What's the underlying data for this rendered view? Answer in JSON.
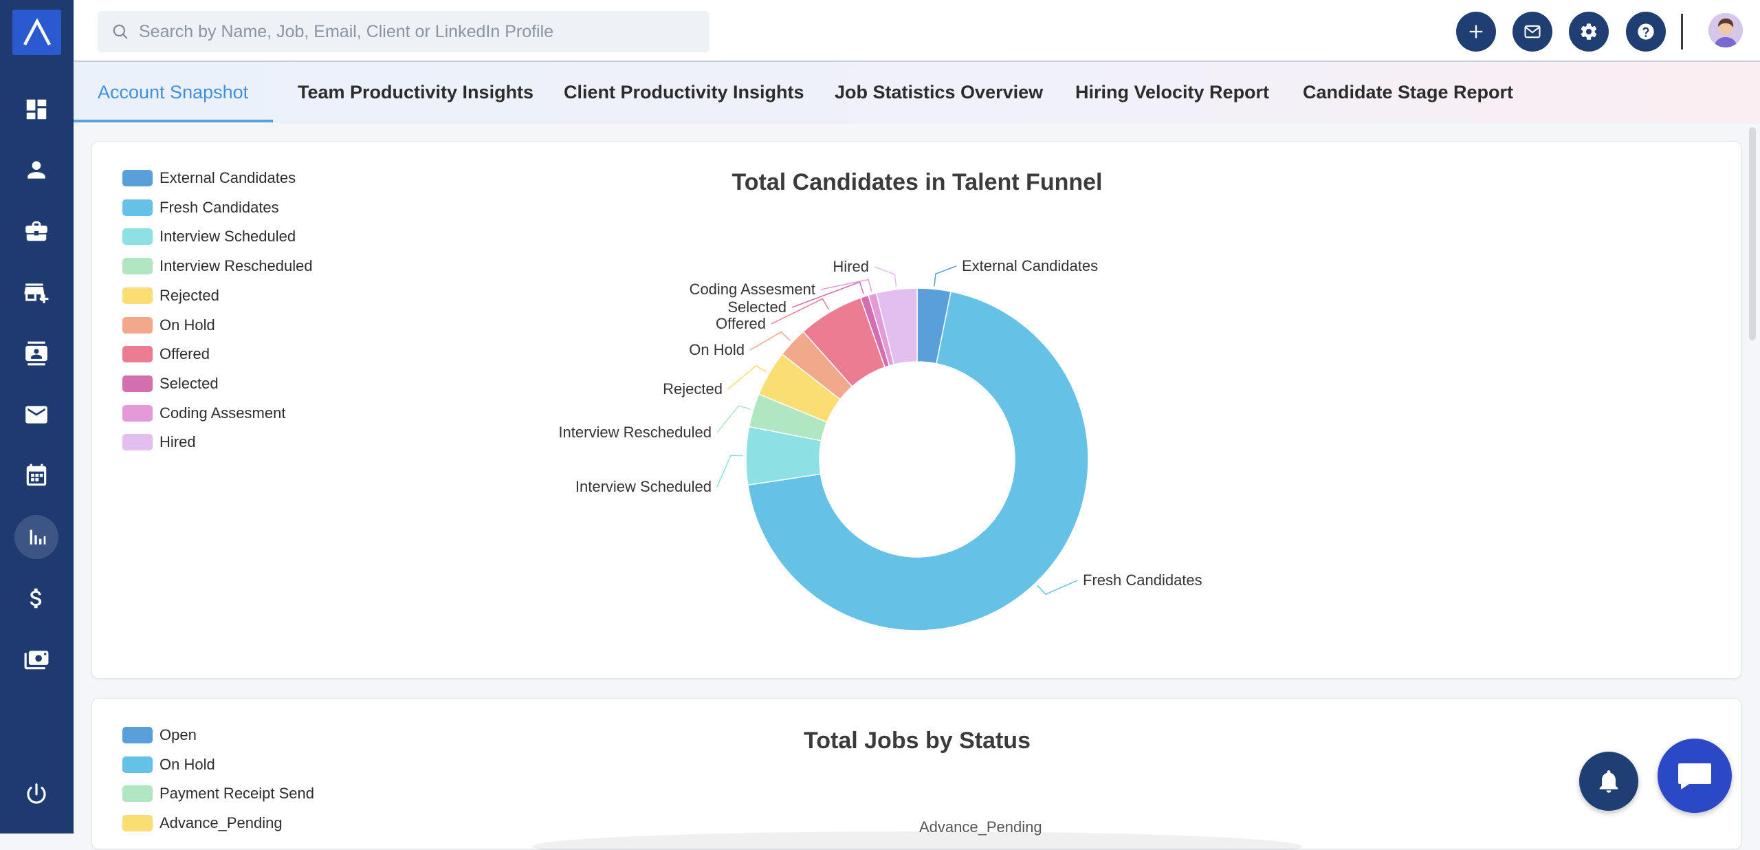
{
  "search": {
    "placeholder": "Search by Name, Job, Email, Client or LinkedIn Profile"
  },
  "topbar": {
    "buttons": [
      {
        "name": "add-button",
        "icon": "plus-icon"
      },
      {
        "name": "mail-button",
        "icon": "mail-icon"
      },
      {
        "name": "settings-button",
        "icon": "gear-icon"
      },
      {
        "name": "help-button",
        "icon": "question-icon"
      }
    ]
  },
  "sidebar": {
    "items": [
      {
        "name": "dashboard",
        "icon": "dashboard-icon"
      },
      {
        "name": "candidates",
        "icon": "person-icon"
      },
      {
        "name": "jobs",
        "icon": "briefcase-icon"
      },
      {
        "name": "clients",
        "icon": "store-add-icon"
      },
      {
        "name": "contacts",
        "icon": "contact-card-icon"
      },
      {
        "name": "email",
        "icon": "envelope-icon"
      },
      {
        "name": "calendar",
        "icon": "calendar-icon"
      },
      {
        "name": "reports",
        "icon": "bar-chart-icon",
        "active": true
      },
      {
        "name": "billing",
        "icon": "dollar-icon"
      },
      {
        "name": "payments",
        "icon": "cash-icon"
      },
      {
        "name": "logout",
        "icon": "power-icon"
      }
    ]
  },
  "tabs": [
    {
      "label": "Account Snapshot",
      "active": true
    },
    {
      "label": "Team Productivity Insights"
    },
    {
      "label": "Client Productivity Insights"
    },
    {
      "label": "Job Statistics Overview"
    },
    {
      "label": "Hiring Velocity Report"
    },
    {
      "label": "Candidate Stage Report"
    }
  ],
  "chart_data": [
    {
      "type": "pie",
      "title": "Total Candidates in Talent Funnel",
      "legend_position": "top-left",
      "donut": true,
      "categories": [
        "External Candidates",
        "Fresh Candidates",
        "Interview Scheduled",
        "Interview Rescheduled",
        "Rejected",
        "On Hold",
        "Offered",
        "Selected",
        "Coding Assesment",
        "Hired"
      ],
      "values": [
        3.3,
        72.5,
        5.7,
        3.3,
        4.5,
        3.0,
        6.5,
        0.8,
        0.8,
        4.0
      ],
      "colors": [
        "#5b9fd9",
        "#66c1e6",
        "#8de0e3",
        "#b1e6c3",
        "#f8de73",
        "#f2a88a",
        "#ec7c92",
        "#d36eb1",
        "#e39ad6",
        "#e3bff0"
      ]
    },
    {
      "type": "pie",
      "title": "Total Jobs by Status",
      "legend_position": "top-left",
      "categories": [
        "Open",
        "On Hold",
        "Payment Receipt Send",
        "Advance_Pending"
      ],
      "colors": [
        "#5b9fd9",
        "#66c1e6",
        "#b1e6c3",
        "#f8de73"
      ]
    }
  ]
}
